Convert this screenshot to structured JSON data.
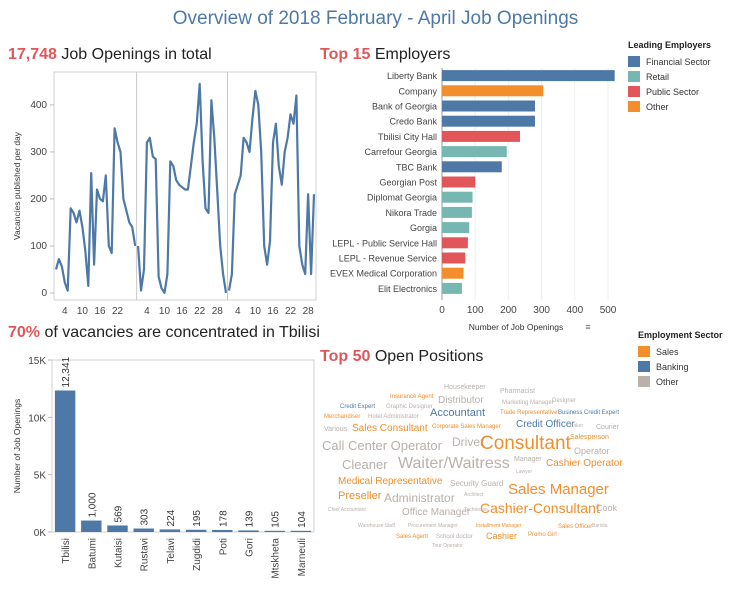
{
  "title": "Overview of 2018 February - April Job Openings",
  "colors": {
    "financial": "#4e79a7",
    "retail": "#76b7b2",
    "public": "#e15759",
    "other": "#f28e2b",
    "sales": "#f28e2b",
    "banking": "#4e79a7",
    "other_sector": "#bab0ac",
    "accent": "#e15759"
  },
  "panels": {
    "line": {
      "title_number": "17,748",
      "title_text": "Job Openings in total"
    },
    "employers": {
      "title_accent": "Top 15",
      "title_text": "Employers"
    },
    "cities": {
      "title_accent": "70%",
      "title_text": "of vacancies are concentrated in Tbilisi"
    },
    "positions": {
      "title_accent": "Top 50",
      "title_text": "Open Positions"
    }
  },
  "legends": {
    "employers": {
      "title": "Leading Employers",
      "items": [
        "Financial Sector",
        "Retail",
        "Public Sector",
        "Other"
      ]
    },
    "sectors": {
      "title": "Employment Sector",
      "items": [
        "Sales",
        "Banking",
        "Other"
      ]
    }
  },
  "chart_data": [
    {
      "type": "line",
      "ylabel": "Vacancies published per day",
      "yticks": [
        0,
        100,
        200,
        300,
        400
      ],
      "ylim": [
        -15,
        470
      ],
      "month_tick_labels": [
        [
          "4",
          "10",
          "16",
          "22"
        ],
        [
          "4",
          "10",
          "16",
          "22",
          "28"
        ],
        [
          "4",
          "10",
          "16",
          "22",
          "28"
        ]
      ],
      "month_days": [
        28,
        31,
        30
      ],
      "series": [
        {
          "values": [
            50,
            72,
            56,
            22,
            5,
            180,
            170,
            150,
            175,
            140,
            90,
            15,
            255,
            60,
            220,
            200,
            195,
            250,
            100,
            85,
            350,
            320,
            300,
            200,
            175,
            150,
            140,
            100
          ]
        },
        {
          "values": [
            100,
            5,
            50,
            320,
            330,
            290,
            285,
            35,
            10,
            0,
            40,
            280,
            270,
            240,
            230,
            225,
            220,
            220,
            270,
            320,
            360,
            445,
            280,
            180,
            170,
            410,
            330,
            215,
            100,
            40,
            0
          ]
        },
        {
          "values": [
            5,
            40,
            210,
            230,
            250,
            330,
            320,
            300,
            370,
            430,
            400,
            300,
            100,
            60,
            110,
            320,
            360,
            270,
            230,
            300,
            330,
            380,
            360,
            420,
            100,
            60,
            40,
            210,
            40,
            210
          ]
        }
      ]
    },
    {
      "type": "bar",
      "orientation": "horizontal",
      "xlabel": "Number of Job Openings",
      "xticks": [
        0,
        100,
        200,
        300,
        400,
        500
      ],
      "xlim": [
        0,
        530
      ],
      "categories": [
        "Liberty Bank",
        "Company",
        "Bank of Georgia",
        "Credo Bank",
        "Tbilisi City Hall",
        "Carrefour Georgia",
        "TBC Bank",
        "Georgian Post",
        "Diplomat Georgia",
        "Nikora Trade",
        "Gorgia",
        "LEPL - Public Service Hall",
        "LEPL - Revenue Service",
        "EVEX Medical Corporation",
        "Elit Electronics"
      ],
      "values": [
        520,
        305,
        280,
        280,
        235,
        195,
        180,
        100,
        92,
        90,
        82,
        78,
        70,
        65,
        60
      ],
      "sector": [
        "financial",
        "other",
        "financial",
        "financial",
        "public",
        "retail",
        "financial",
        "public",
        "retail",
        "retail",
        "retail",
        "public",
        "public",
        "other",
        "retail"
      ]
    },
    {
      "type": "bar",
      "ylabel": "Number of Job Openings",
      "yticks": [
        "0K",
        "5K",
        "10K",
        "15K"
      ],
      "ylim": [
        0,
        15000
      ],
      "categories": [
        "Tbilisi",
        "Batumi",
        "Kutaisi",
        "Rustavi",
        "Telavi",
        "Zugdidi",
        "Poti",
        "Gori",
        "Mtskheta",
        "Marneuli"
      ],
      "values": [
        12341,
        1000,
        569,
        303,
        224,
        195,
        178,
        139,
        105,
        104
      ],
      "value_labels": [
        "12,341",
        "1,000",
        "569",
        "303",
        "224",
        "195",
        "178",
        "139",
        "105",
        "104"
      ]
    }
  ],
  "word_cloud": [
    {
      "text": "Housekeeper",
      "sector": "other",
      "size": 7
    },
    {
      "text": "Pharmacist",
      "sector": "other",
      "size": 7
    },
    {
      "text": "Insurance Agent",
      "sector": "sales",
      "size": 6
    },
    {
      "text": "Distributor",
      "sector": "other",
      "size": 10
    },
    {
      "text": "Marketing Manager",
      "sector": "other",
      "size": 6
    },
    {
      "text": "Designer",
      "sector": "other",
      "size": 6
    },
    {
      "text": "Credit Expert",
      "sector": "banking",
      "size": 6
    },
    {
      "text": "Graphic Designer",
      "sector": "other",
      "size": 6
    },
    {
      "text": "Merchandiser",
      "sector": "sales",
      "size": 6
    },
    {
      "text": "Hotel Administrator",
      "sector": "other",
      "size": 6
    },
    {
      "text": "Accountant",
      "sector": "banking",
      "size": 11
    },
    {
      "text": "Trade Representative",
      "sector": "sales",
      "size": 6
    },
    {
      "text": "Business Credit Expert",
      "sector": "banking",
      "size": 6
    },
    {
      "text": "Various",
      "sector": "other",
      "size": 7
    },
    {
      "text": "Sales Consultant",
      "sector": "sales",
      "size": 10
    },
    {
      "text": "Corporate Sales Manager",
      "sector": "sales",
      "size": 6
    },
    {
      "text": "Credit Officer",
      "sector": "banking",
      "size": 10
    },
    {
      "text": "Baker",
      "sector": "other",
      "size": 5
    },
    {
      "text": "Courier",
      "sector": "other",
      "size": 7
    },
    {
      "text": "Call Center Operator",
      "sector": "other",
      "size": 13
    },
    {
      "text": "Driver",
      "sector": "other",
      "size": 12
    },
    {
      "text": "Consultant",
      "sector": "sales",
      "size": 19
    },
    {
      "text": "Salesperson",
      "sector": "sales",
      "size": 7
    },
    {
      "text": "Operator",
      "sector": "other",
      "size": 9
    },
    {
      "text": "Cleaner",
      "sector": "other",
      "size": 13
    },
    {
      "text": "Waiter/Waitress",
      "sector": "other",
      "size": 16
    },
    {
      "text": "Manager",
      "sector": "other",
      "size": 7
    },
    {
      "text": "Cashier Operator",
      "sector": "sales",
      "size": 10
    },
    {
      "text": "Lawyer",
      "sector": "other",
      "size": 5
    },
    {
      "text": "Medical Representative",
      "sector": "sales",
      "size": 10
    },
    {
      "text": "Security Guard",
      "sector": "other",
      "size": 8
    },
    {
      "text": "Sales Manager",
      "sector": "sales",
      "size": 15
    },
    {
      "text": "Preseller",
      "sector": "sales",
      "size": 11
    },
    {
      "text": "Administrator",
      "sector": "other",
      "size": 12
    },
    {
      "text": "Architect",
      "sector": "other",
      "size": 5
    },
    {
      "text": "Cashier-Consultant",
      "sector": "sales",
      "size": 14
    },
    {
      "text": "Chief Accountant",
      "sector": "other",
      "size": 5
    },
    {
      "text": "Office Manager",
      "sector": "other",
      "size": 10
    },
    {
      "text": "Technician",
      "sector": "other",
      "size": 5
    },
    {
      "text": "Cook",
      "sector": "other",
      "size": 9
    },
    {
      "text": "Warehouse Staff",
      "sector": "other",
      "size": 5
    },
    {
      "text": "Procurement Manager",
      "sector": "other",
      "size": 5
    },
    {
      "text": "Installment Manager",
      "sector": "sales",
      "size": 5
    },
    {
      "text": "Sales Officer",
      "sector": "sales",
      "size": 6
    },
    {
      "text": "Barista",
      "sector": "other",
      "size": 5
    },
    {
      "text": "Sales Agent",
      "sector": "sales",
      "size": 6
    },
    {
      "text": "School doctor",
      "sector": "other",
      "size": 6
    },
    {
      "text": "Cashier",
      "sector": "sales",
      "size": 9
    },
    {
      "text": "Promo Girl",
      "sector": "sales",
      "size": 6
    },
    {
      "text": "Tour Operator",
      "sector": "other",
      "size": 5
    }
  ]
}
